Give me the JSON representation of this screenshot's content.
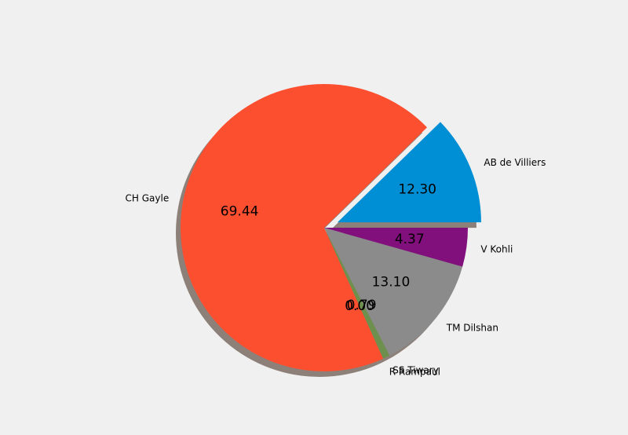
{
  "chart_data": {
    "type": "pie",
    "title": "",
    "labels": [
      "AB de Villiers",
      "CH Gayle",
      "R Rampaul",
      "SS Tiwary",
      "TM Dilshan",
      "V Kohli"
    ],
    "values": [
      12.3,
      69.44,
      0.0,
      0.79,
      13.1,
      4.37
    ],
    "value_labels": [
      "12.30",
      "69.44",
      "0.00",
      "0.79",
      "13.10",
      "4.37"
    ],
    "explode": [
      0.1,
      0,
      0,
      0,
      0,
      0
    ],
    "colors": [
      "#008fd5",
      "#fc4f30",
      "#e5ae38",
      "#6d904f",
      "#8b8b8b",
      "#810f7c"
    ],
    "shadow": true,
    "start_angle_deg": 0,
    "direction": "counterclockwise",
    "value_format": "%.2f",
    "legend": "none"
  }
}
